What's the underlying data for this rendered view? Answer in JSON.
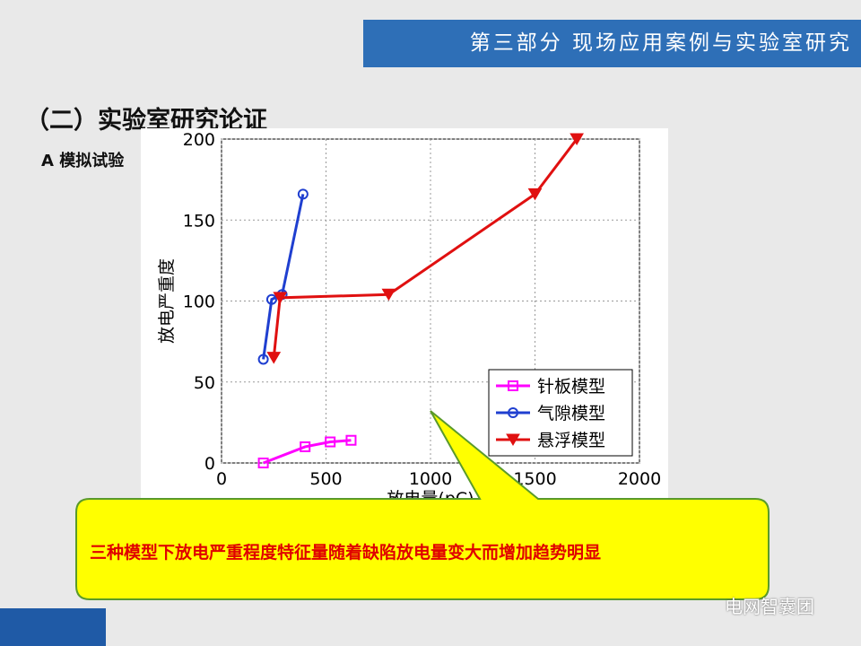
{
  "header": "第三部分 现场应用案例与实验室研究",
  "section_title": "（二）实验室研究论证",
  "subsection": "A 模拟试验",
  "callout": "三种模型下放电严重程度特征量随着缺陷放电量变大而增加趋势明显",
  "watermark": "电网智囊团",
  "chart_data": {
    "type": "line",
    "xlabel": "放电量(pC)",
    "ylabel": "放电严重度",
    "xlim": [
      0,
      2000
    ],
    "xticks": [
      0,
      500,
      1000,
      1500,
      2000
    ],
    "ylim": [
      0,
      200
    ],
    "yticks": [
      0,
      50,
      100,
      150,
      200
    ],
    "grid": true,
    "legend": "lower right",
    "series": [
      {
        "name": "针板模型",
        "color": "#ff00ff",
        "marker": "square",
        "x": [
          200,
          400,
          520,
          620
        ],
        "values": [
          0,
          10,
          13,
          14
        ]
      },
      {
        "name": "气隙模型",
        "color": "#1f3fd0",
        "marker": "circle",
        "x": [
          200,
          240,
          290,
          390
        ],
        "values": [
          64,
          101,
          104,
          166
        ]
      },
      {
        "name": "悬浮模型",
        "color": "#e01010",
        "marker": "triangle-down",
        "x": [
          250,
          280,
          800,
          1500,
          1700
        ],
        "values": [
          65,
          102,
          104,
          166,
          200
        ]
      }
    ]
  }
}
